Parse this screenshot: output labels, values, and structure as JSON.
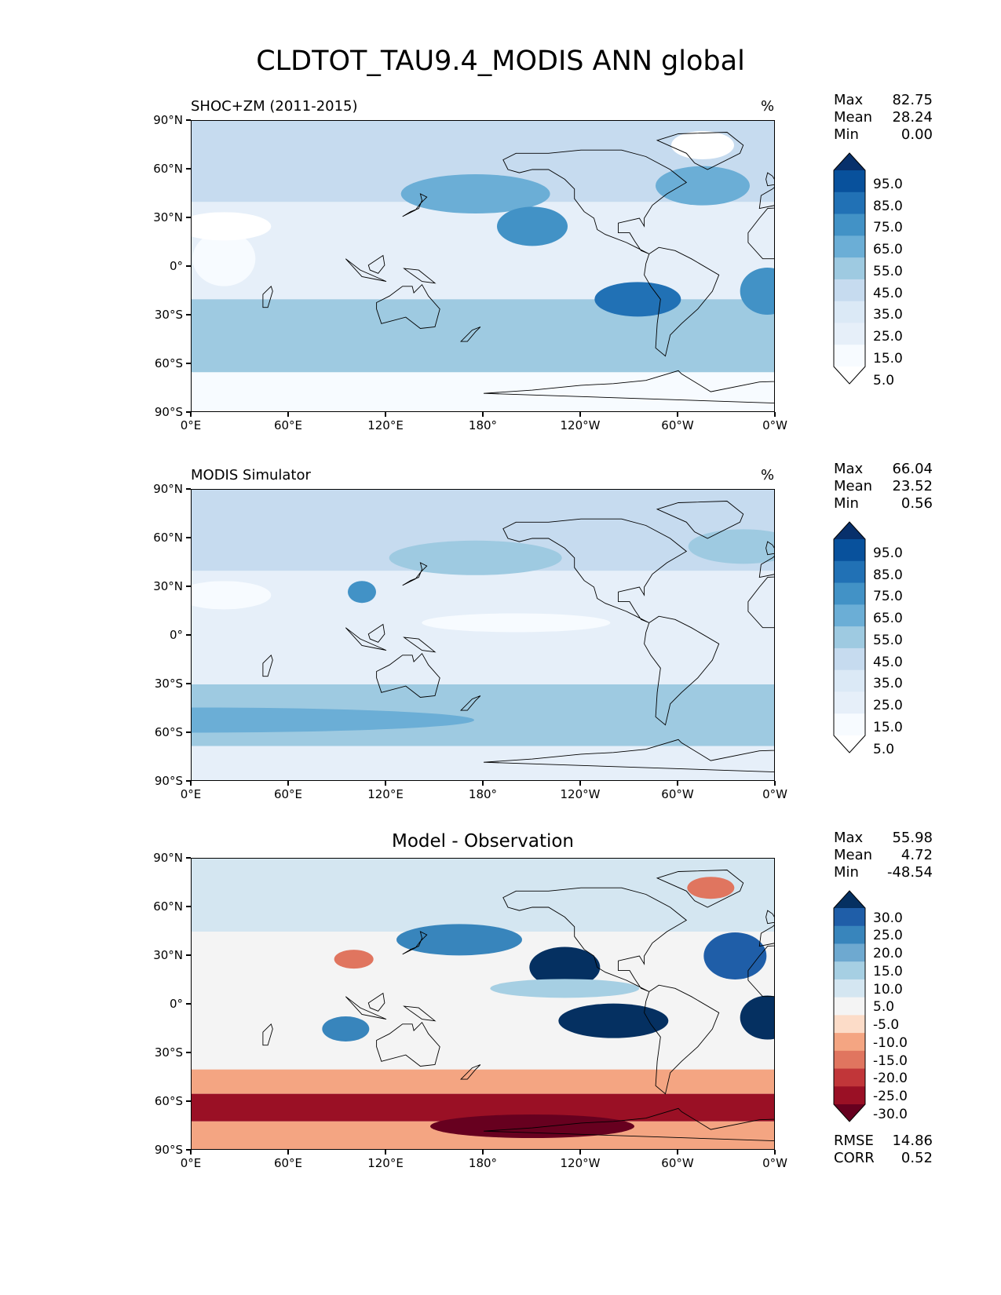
{
  "title": "CLDTOT_TAU9.4_MODIS ANN global",
  "x_ticks": [
    "0°E",
    "60°E",
    "120°E",
    "180°",
    "120°W",
    "60°W",
    "0°W"
  ],
  "y_ticks": [
    "90°N",
    "60°N",
    "30°N",
    "0°",
    "30°S",
    "60°S",
    "90°S"
  ],
  "panels": [
    {
      "title": "SHOC+ZM (2011-2015)",
      "unit": "%",
      "stats": [
        {
          "label": "Max",
          "value": "82.75"
        },
        {
          "label": "Mean",
          "value": "28.24"
        },
        {
          "label": "Min",
          "value": "0.00"
        }
      ],
      "colorbar": {
        "labels": [
          "95.0",
          "85.0",
          "75.0",
          "65.0",
          "55.0",
          "45.0",
          "35.0",
          "25.0",
          "15.0",
          "5.0"
        ],
        "colors": [
          "#08306b",
          "#08519c",
          "#2171b5",
          "#4292c6",
          "#6baed6",
          "#9ecae1",
          "#c6dbef",
          "#dbe9f6",
          "#e6eff9",
          "#f7fbff",
          "#ffffff"
        ]
      }
    },
    {
      "title": "MODIS Simulator",
      "unit": "%",
      "stats": [
        {
          "label": "Max",
          "value": "66.04"
        },
        {
          "label": "Mean",
          "value": "23.52"
        },
        {
          "label": "Min",
          "value": "0.56"
        }
      ],
      "colorbar": {
        "labels": [
          "95.0",
          "85.0",
          "75.0",
          "65.0",
          "55.0",
          "45.0",
          "35.0",
          "25.0",
          "15.0",
          "5.0"
        ],
        "colors": [
          "#08306b",
          "#08519c",
          "#2171b5",
          "#4292c6",
          "#6baed6",
          "#9ecae1",
          "#c6dbef",
          "#dbe9f6",
          "#e6eff9",
          "#f7fbff",
          "#ffffff"
        ]
      }
    },
    {
      "title": "Model - Observation",
      "unit": "",
      "stats": [
        {
          "label": "Max",
          "value": "55.98"
        },
        {
          "label": "Mean",
          "value": "4.72"
        },
        {
          "label": "Min",
          "value": "-48.54"
        }
      ],
      "extra_stats": [
        {
          "label": "RMSE",
          "value": "14.86"
        },
        {
          "label": "CORR",
          "value": "0.52"
        }
      ],
      "colorbar": {
        "labels": [
          "30.0",
          "25.0",
          "20.0",
          "15.0",
          "10.0",
          "5.0",
          "-5.0",
          "-10.0",
          "-15.0",
          "-20.0",
          "-25.0",
          "-30.0"
        ],
        "colors": [
          "#053061",
          "#1f5ea8",
          "#3885bc",
          "#6ea9d0",
          "#a6cfe3",
          "#d4e6f1",
          "#f4f4f4",
          "#fcdcc8",
          "#f4a582",
          "#e0755f",
          "#c13639",
          "#9a1025",
          "#67001f"
        ]
      }
    }
  ]
}
